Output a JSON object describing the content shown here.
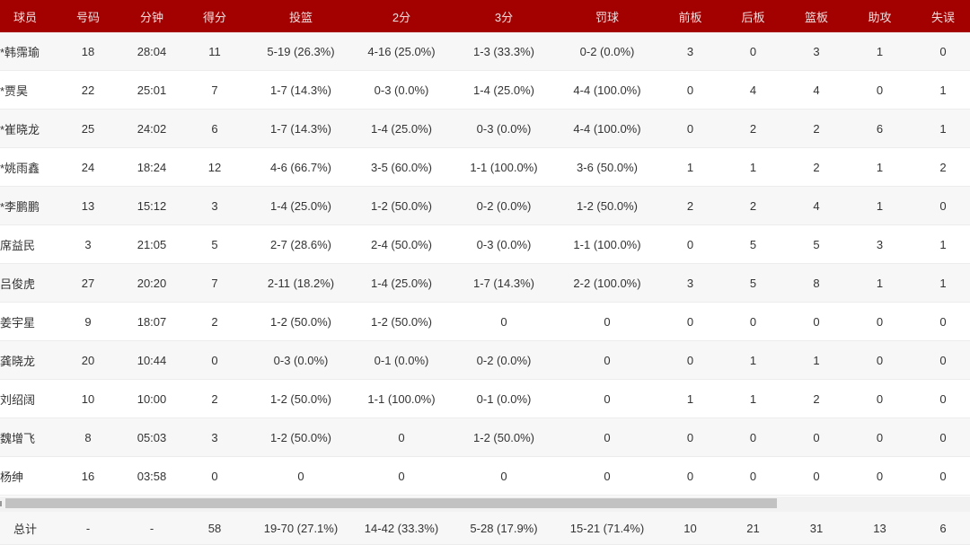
{
  "headers": [
    "球员",
    "号码",
    "分钟",
    "得分",
    "投篮",
    "2分",
    "3分",
    "罚球",
    "前板",
    "后板",
    "篮板",
    "助攻",
    "失误"
  ],
  "rows": [
    [
      "*韩霈瑜",
      "18",
      "28:04",
      "11",
      "5-19 (26.3%)",
      "4-16 (25.0%)",
      "1-3 (33.3%)",
      "0-2 (0.0%)",
      "3",
      "0",
      "3",
      "1",
      "0"
    ],
    [
      "*贾昊",
      "22",
      "25:01",
      "7",
      "1-7 (14.3%)",
      "0-3 (0.0%)",
      "1-4 (25.0%)",
      "4-4 (100.0%)",
      "0",
      "4",
      "4",
      "0",
      "1"
    ],
    [
      "*崔晓龙",
      "25",
      "24:02",
      "6",
      "1-7 (14.3%)",
      "1-4 (25.0%)",
      "0-3 (0.0%)",
      "4-4 (100.0%)",
      "0",
      "2",
      "2",
      "6",
      "1"
    ],
    [
      "*姚雨鑫",
      "24",
      "18:24",
      "12",
      "4-6 (66.7%)",
      "3-5 (60.0%)",
      "1-1 (100.0%)",
      "3-6 (50.0%)",
      "1",
      "1",
      "2",
      "1",
      "2"
    ],
    [
      "*李鹏鹏",
      "13",
      "15:12",
      "3",
      "1-4 (25.0%)",
      "1-2 (50.0%)",
      "0-2 (0.0%)",
      "1-2 (50.0%)",
      "2",
      "2",
      "4",
      "1",
      "0"
    ],
    [
      "席益民",
      "3",
      "21:05",
      "5",
      "2-7 (28.6%)",
      "2-4 (50.0%)",
      "0-3 (0.0%)",
      "1-1 (100.0%)",
      "0",
      "5",
      "5",
      "3",
      "1"
    ],
    [
      "吕俊虎",
      "27",
      "20:20",
      "7",
      "2-11 (18.2%)",
      "1-4 (25.0%)",
      "1-7 (14.3%)",
      "2-2 (100.0%)",
      "3",
      "5",
      "8",
      "1",
      "1"
    ],
    [
      "姜宇星",
      "9",
      "18:07",
      "2",
      "1-2 (50.0%)",
      "1-2 (50.0%)",
      "0",
      "0",
      "0",
      "0",
      "0",
      "0",
      "0"
    ],
    [
      "龚晓龙",
      "20",
      "10:44",
      "0",
      "0-3 (0.0%)",
      "0-1 (0.0%)",
      "0-2 (0.0%)",
      "0",
      "0",
      "1",
      "1",
      "0",
      "0"
    ],
    [
      "刘绍阔",
      "10",
      "10:00",
      "2",
      "1-2 (50.0%)",
      "1-1 (100.0%)",
      "0-1 (0.0%)",
      "0",
      "1",
      "1",
      "2",
      "0",
      "0"
    ],
    [
      "魏增飞",
      "8",
      "05:03",
      "3",
      "1-2 (50.0%)",
      "0",
      "1-2 (50.0%)",
      "0",
      "0",
      "0",
      "0",
      "0",
      "0"
    ],
    [
      "杨绅",
      "16",
      "03:58",
      "0",
      "0",
      "0",
      "0",
      "0",
      "0",
      "0",
      "0",
      "0",
      "0"
    ]
  ],
  "total": [
    "总计",
    "-",
    "-",
    "58",
    "19-70 (27.1%)",
    "14-42 (33.3%)",
    "5-28 (17.9%)",
    "15-21 (71.4%)",
    "10",
    "21",
    "31",
    "13",
    "6"
  ],
  "colors": {
    "header_bg": "#a30000"
  }
}
